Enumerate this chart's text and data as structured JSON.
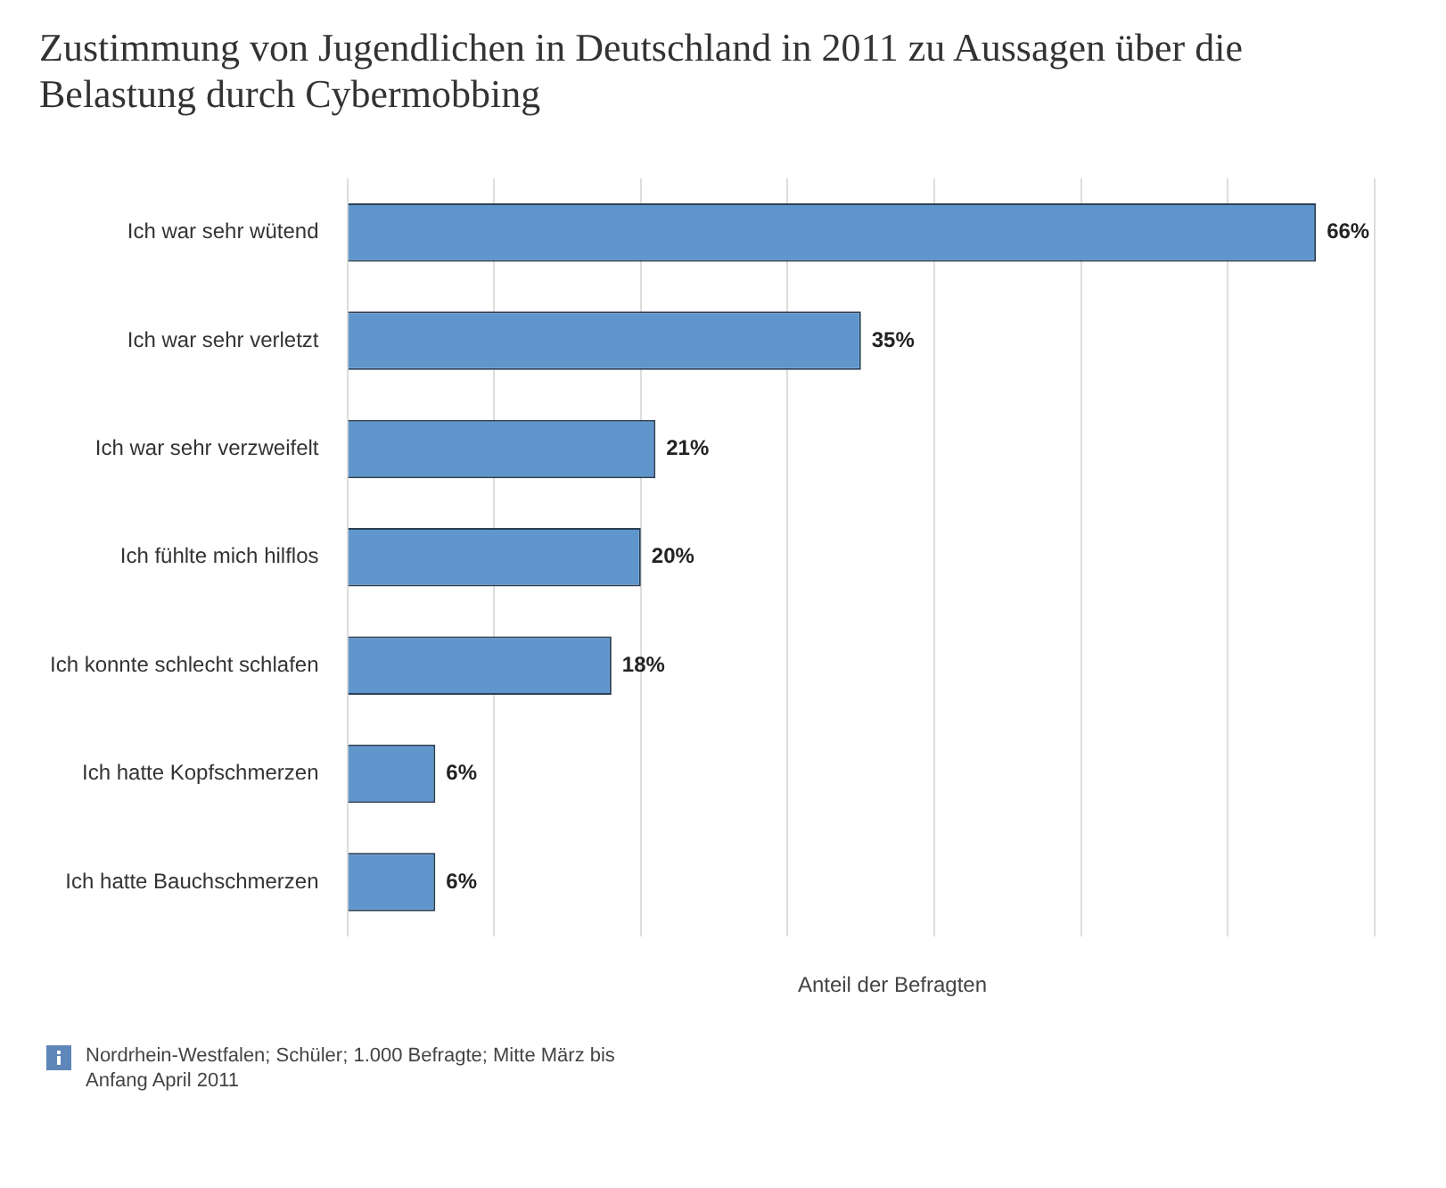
{
  "chart_data": {
    "type": "bar",
    "orientation": "horizontal",
    "title": "Zustimmung von Jugendlichen in Deutschland in 2011 zu Aussagen über die Belastung durch Cybermobbing",
    "xlabel": "Anteil der Befragten",
    "categories": [
      "Ich war sehr wütend",
      "Ich war sehr verletzt",
      "Ich war sehr verzweifelt",
      "Ich fühlte mich hilflos",
      "Ich konnte schlecht schlafen",
      "Ich hatte Kopfschmerzen",
      "Ich hatte Bauchschmerzen"
    ],
    "values": [
      66,
      35,
      21,
      20,
      18,
      6,
      6
    ],
    "value_labels": [
      "66%",
      "35%",
      "21%",
      "20%",
      "18%",
      "6%",
      "6%"
    ],
    "color": "#5f96cc",
    "xlim": [
      0,
      70
    ],
    "xticks": [
      {
        "value": 0,
        "label": null
      },
      {
        "value": 10,
        "label": null
      },
      {
        "value": 20,
        "label": null
      },
      {
        "value": 30,
        "label": null
      },
      {
        "value": 40,
        "label": null
      },
      {
        "value": 50,
        "label": null
      },
      {
        "value": 60,
        "label": null
      },
      {
        "value": 70,
        "label": null
      }
    ],
    "grid": "x",
    "tick_labels": "y",
    "legend": false,
    "annotations": [
      "Nordrhein-Westfalen; Schüler; 1.000 Befragte; Mitte März bis Anfang April 2011"
    ]
  }
}
